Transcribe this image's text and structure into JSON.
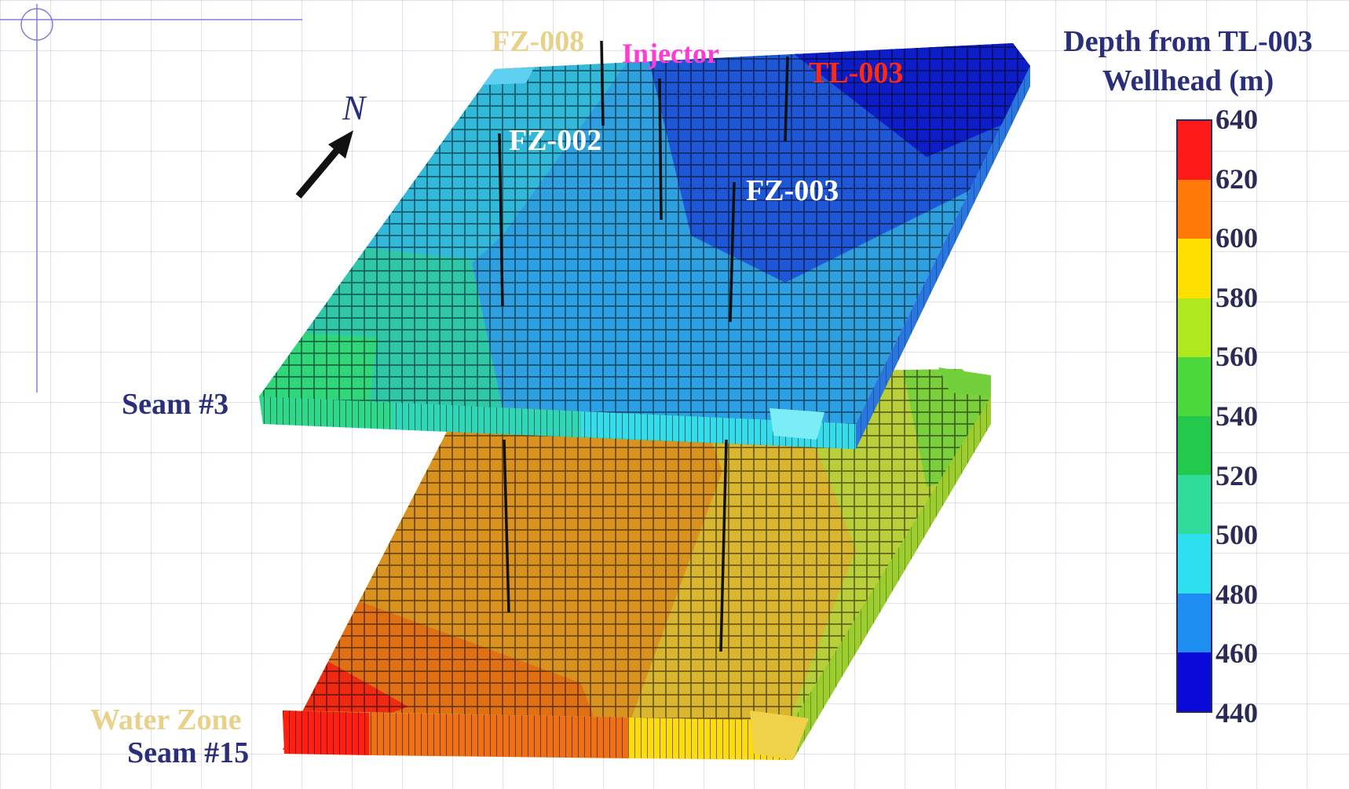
{
  "legend": {
    "title_line1": "Depth from TL-003",
    "title_line2": "Wellhead (m)",
    "ticks": [
      "640",
      "620",
      "600",
      "580",
      "560",
      "540",
      "520",
      "500",
      "480",
      "460",
      "440"
    ],
    "colors": [
      "#ff1a1a",
      "#ff8000",
      "#ffe000",
      "#b0e81e",
      "#49d63a",
      "#22c94a",
      "#30dc9a",
      "#2ee0ee",
      "#1e8ef2",
      "#1d52f0",
      "#0a0ad8"
    ]
  },
  "labels": {
    "north": "N",
    "wells": {
      "fz008": "FZ-008",
      "injector": "Injector",
      "tl003": "TL-003",
      "fz002": "FZ-002",
      "fz003": "FZ-003"
    },
    "seam3": "Seam #3",
    "water_zone": "Water Zone",
    "seam15": "Seam #15"
  },
  "colors": {
    "legend_title": "#2b2f7a",
    "seam_label": "#2b2f7a",
    "fz008": "#e8d28a",
    "injector": "#ff3cd2",
    "tl003": "#ff2a10",
    "water_zone": "#e8d28a",
    "well_lines": "#111111",
    "slide_rule": "#8080d8"
  }
}
